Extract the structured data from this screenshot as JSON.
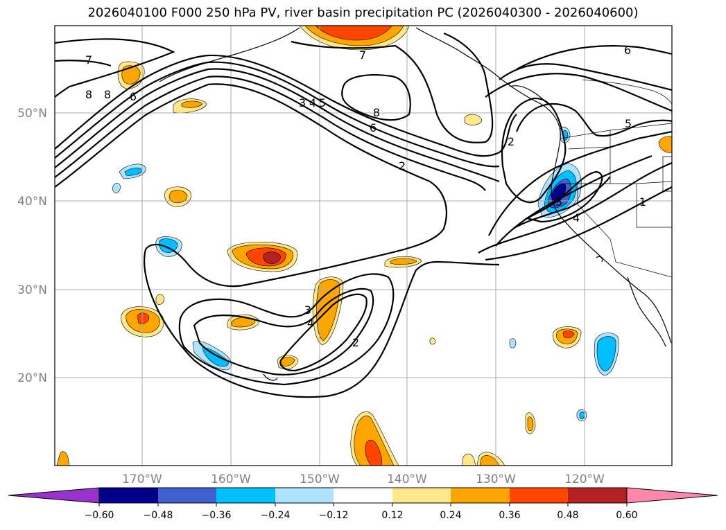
{
  "title": "2026040100 F000 250 hPa PV, river basin precipitation PC (2026040300 - 2026040600)",
  "latitude_labels": [
    "50°N",
    "40°N",
    "30°N",
    "20°N"
  ],
  "longitude_labels": [
    "170°W",
    "160°W",
    "150°W",
    "140°W",
    "130°W",
    "120°W"
  ],
  "contour_labels": [
    "7",
    "8",
    "8",
    "6",
    "3",
    "4",
    "5",
    "7",
    "8",
    "6",
    "2",
    "6",
    "5",
    "2",
    "3",
    "4",
    "2",
    "1",
    "4",
    "5"
  ],
  "colorbar": {
    "tick_labels": [
      "−0.60",
      "−0.48",
      "−0.36",
      "−0.24",
      "−0.12",
      "0.12",
      "0.24",
      "0.36",
      "0.48",
      "0.60"
    ],
    "colors": [
      "#9932cc",
      "#00008b",
      "#3d5fcf",
      "#00bfff",
      "#aee3ff",
      "#ffffff",
      "#ffe88a",
      "#ffa500",
      "#ff4500",
      "#b22222",
      "#ff88aa"
    ]
  }
}
